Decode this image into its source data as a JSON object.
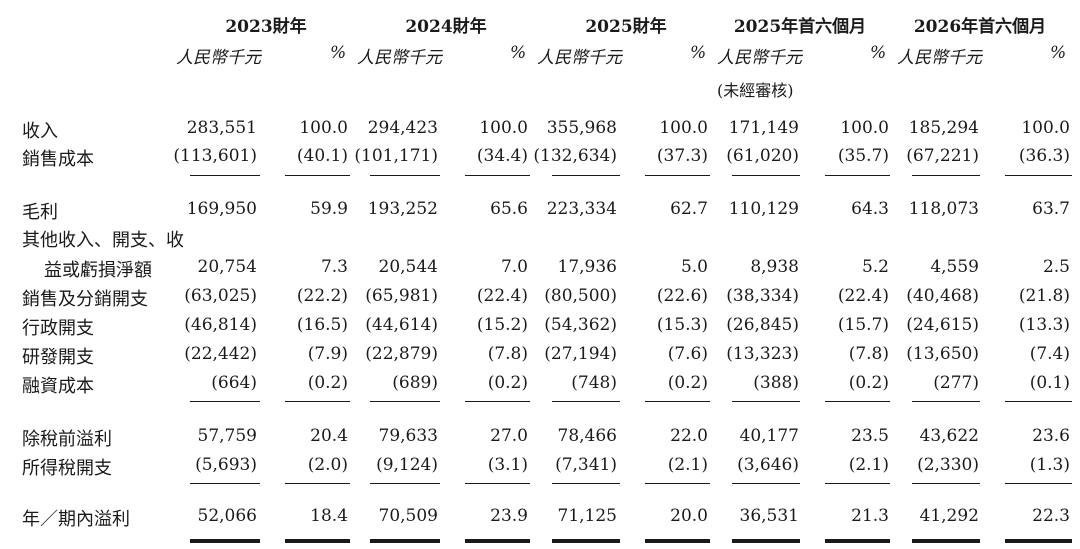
{
  "header": {
    "periods": [
      "2023財年",
      "2024財年",
      "2025財年",
      "2025年首六個月",
      "2026年首六個月"
    ],
    "unit": "人民幣千元",
    "pct": "%",
    "unaudited": "(未經審核)"
  },
  "rows": [
    {
      "label": "收入",
      "values": [
        "283,551",
        "100.0",
        "294,423",
        "100.0",
        "355,968",
        "100.0",
        "171,149",
        "100.0",
        "185,294",
        "100.0"
      ]
    },
    {
      "label": "銷售成本",
      "values": [
        "(113,601)",
        "(40.1)",
        "(101,171)",
        "(34.4)",
        "(132,634)",
        "(37.3)",
        "(61,020)",
        "(35.7)",
        "(67,221)",
        "(36.3)"
      ]
    },
    {
      "label": "毛利",
      "values": [
        "169,950",
        "59.9",
        "193,252",
        "65.6",
        "223,334",
        "62.7",
        "110,129",
        "64.3",
        "118,073",
        "63.7"
      ]
    },
    {
      "label": "其他收入、開支、收",
      "values": []
    },
    {
      "label": "益或虧損淨額",
      "values": [
        "20,754",
        "7.3",
        "20,544",
        "7.0",
        "17,936",
        "5.0",
        "8,938",
        "5.2",
        "4,559",
        "2.5"
      ]
    },
    {
      "label": "銷售及分銷開支",
      "values": [
        "(63,025)",
        "(22.2)",
        "(65,981)",
        "(22.4)",
        "(80,500)",
        "(22.6)",
        "(38,334)",
        "(22.4)",
        "(40,468)",
        "(21.8)"
      ]
    },
    {
      "label": "行政開支",
      "values": [
        "(46,814)",
        "(16.5)",
        "(44,614)",
        "(15.2)",
        "(54,362)",
        "(15.3)",
        "(26,845)",
        "(15.7)",
        "(24,615)",
        "(13.3)"
      ]
    },
    {
      "label": "研發開支",
      "values": [
        "(22,442)",
        "(7.9)",
        "(22,879)",
        "(7.8)",
        "(27,194)",
        "(7.6)",
        "(13,323)",
        "(7.8)",
        "(13,650)",
        "(7.4)"
      ]
    },
    {
      "label": "融資成本",
      "values": [
        "(664)",
        "(0.2)",
        "(689)",
        "(0.2)",
        "(748)",
        "(0.2)",
        "(388)",
        "(0.2)",
        "(277)",
        "(0.1)"
      ]
    },
    {
      "label": "除稅前溢利",
      "values": [
        "57,759",
        "20.4",
        "79,633",
        "27.0",
        "78,466",
        "22.0",
        "40,177",
        "23.5",
        "43,622",
        "23.6"
      ]
    },
    {
      "label": "所得稅開支",
      "values": [
        "(5,693)",
        "(2.0)",
        "(9,124)",
        "(3.1)",
        "(7,341)",
        "(2.1)",
        "(3,646)",
        "(2.1)",
        "(2,330)",
        "(1.3)"
      ]
    },
    {
      "label": "年／期內溢利",
      "values": [
        "52,066",
        "18.4",
        "70,509",
        "23.9",
        "71,125",
        "20.0",
        "36,531",
        "21.3",
        "41,292",
        "22.3"
      ]
    }
  ]
}
